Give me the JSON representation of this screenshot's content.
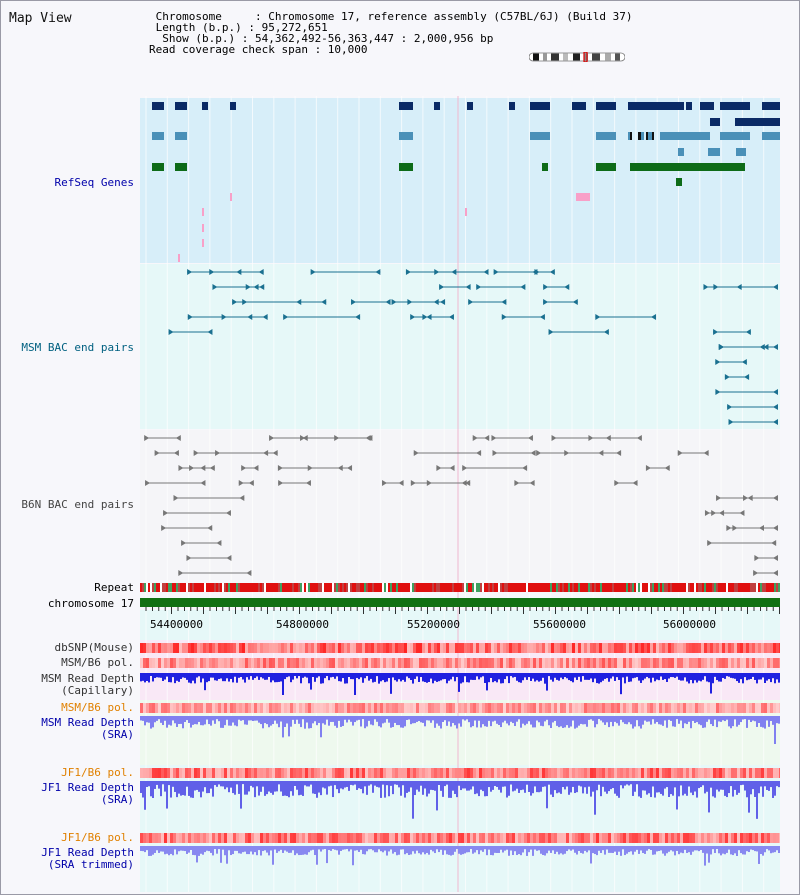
{
  "view": {
    "title": "Map View",
    "info_lines": [
      " Chromosome     : Chromosome 17, reference assembly (C57BL/6J) (Build 37)",
      " Length (b.p.) : 95,272,651",
      "  Show (b.p.) : 54,362,492-56,363,447 : 2,000,956 bp",
      "Read coverage check span : 10,000"
    ]
  },
  "tracks": {
    "refseq": {
      "label": "RefSeq Genes",
      "color": "#0000aa"
    },
    "msm_bac": {
      "label": "MSM BAC end pairs",
      "color": "#006080"
    },
    "b6n_bac": {
      "label": "B6N BAC end pairs",
      "color": "#444444"
    },
    "repeat": {
      "label": "Repeat"
    },
    "chromosome": {
      "label": "chromosome 17"
    },
    "axis_ticks": [
      "54400000",
      "54800000",
      "55200000",
      "55600000",
      "56000000"
    ],
    "dbsnp": {
      "label": "dbSNP(Mouse)"
    },
    "msm_b6_pol": {
      "label": "MSM/B6 pol."
    },
    "msm_depth_cap": {
      "label_1": "MSM Read Depth",
      "label_2": "(Capillary)"
    },
    "msm_b6_pol_2": {
      "label": "MSM/B6 pol.",
      "color": "#e08000"
    },
    "msm_depth_sra": {
      "label_1": "MSM Read Depth",
      "label_2": "(SRA)"
    },
    "jf1_b6_pol": {
      "label": "JF1/B6 pol.",
      "color": "#e08000"
    },
    "jf1_depth_sra": {
      "label_1": "JF1 Read Depth",
      "label_2": "(SRA)"
    },
    "jf1_b6_pol_2": {
      "label": "JF1/B6 pol.",
      "color": "#e08000"
    },
    "jf1_depth_trim": {
      "label_1": "JF1 Read Depth",
      "label_2": "(SRA trimmed)"
    }
  }
}
